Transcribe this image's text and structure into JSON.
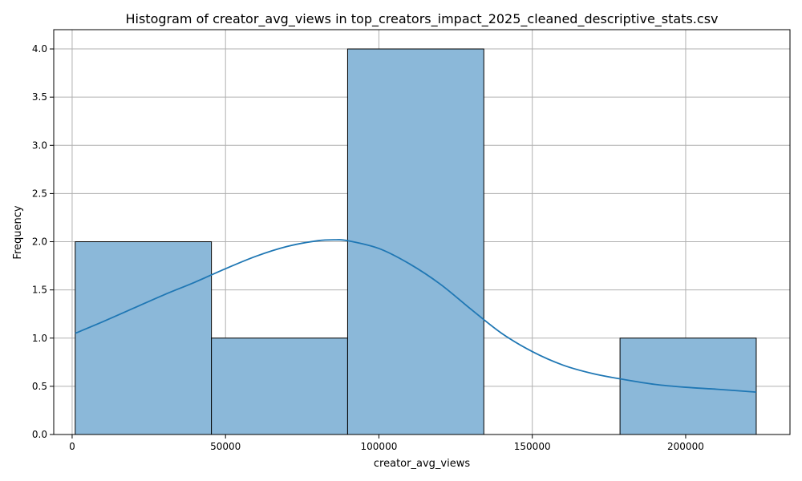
{
  "chart_data": {
    "type": "bar",
    "subtype": "histogram",
    "title": "Histogram of creator_avg_views in top_creators_impact_2025_cleaned_descriptive_stats.csv",
    "xlabel": "creator_avg_views",
    "ylabel": "Frequency",
    "xlim": [
      -6000,
      234000
    ],
    "ylim": [
      0,
      4.2
    ],
    "x_ticks": [
      0,
      50000,
      100000,
      150000,
      200000
    ],
    "y_ticks": [
      0.0,
      0.5,
      1.0,
      1.5,
      2.0,
      2.5,
      3.0,
      3.5,
      4.0
    ],
    "bins": [
      {
        "x0": 1000,
        "x1": 45400,
        "count": 2
      },
      {
        "x0": 45400,
        "x1": 89800,
        "count": 1
      },
      {
        "x0": 89800,
        "x1": 134200,
        "count": 4
      },
      {
        "x0": 134200,
        "x1": 178600,
        "count": 0
      },
      {
        "x0": 178600,
        "x1": 223000,
        "count": 1
      }
    ],
    "kde": {
      "x": [
        1000,
        10000,
        20000,
        30000,
        40000,
        50000,
        60000,
        70000,
        80000,
        86000,
        90000,
        100000,
        110000,
        120000,
        130000,
        140000,
        150000,
        160000,
        170000,
        180000,
        190000,
        200000,
        210000,
        223000
      ],
      "y": [
        1.05,
        1.17,
        1.31,
        1.45,
        1.58,
        1.72,
        1.85,
        1.95,
        2.01,
        2.02,
        2.01,
        1.93,
        1.77,
        1.56,
        1.3,
        1.05,
        0.86,
        0.72,
        0.63,
        0.57,
        0.52,
        0.49,
        0.47,
        0.44
      ]
    },
    "bar_color": "#8bb8d9",
    "bar_edge_color": "#000000",
    "line_color": "#1f77b4",
    "grid": true,
    "legend": "none"
  }
}
